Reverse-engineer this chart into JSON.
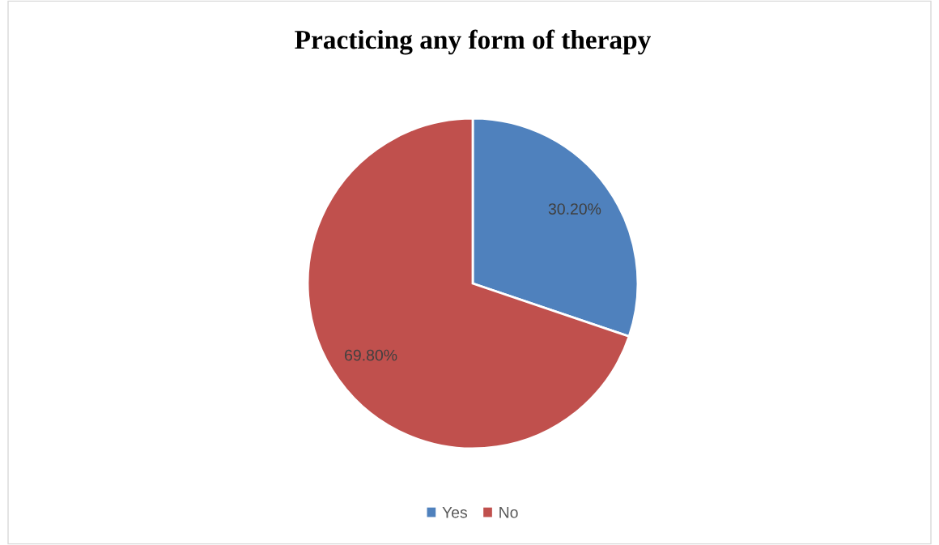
{
  "chart_data": {
    "type": "pie",
    "title": "Practicing any form of therapy",
    "categories": [
      "Yes",
      "No"
    ],
    "values": [
      30.2,
      69.8
    ],
    "colors": [
      "#4f81bd",
      "#c0504d"
    ],
    "value_labels": [
      "30.20%",
      "69.80%"
    ],
    "legend": "bottom"
  }
}
